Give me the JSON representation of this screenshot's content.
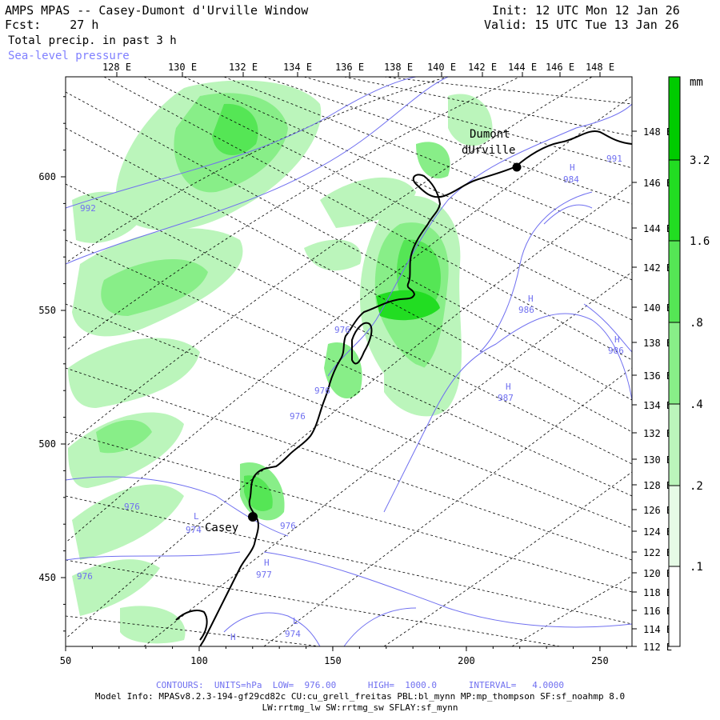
{
  "header": {
    "title": "AMPS MPAS -- Casey-Dumont d'Urville Window",
    "forecast_label": "Fcst:",
    "forecast_hours": "27 h",
    "field": "Total precip. in past 3 h",
    "overlay": "Sea-level pressure",
    "init": "Init: 12 UTC Mon 12 Jan 26",
    "valid": "Valid: 15 UTC Tue 13 Jan 26"
  },
  "axes": {
    "x_ticks": [
      "50",
      "100",
      "150",
      "200",
      "250"
    ],
    "y_ticks": [
      "600",
      "550",
      "500",
      "450"
    ]
  },
  "longitude_labels_top": [
    "128 E",
    "130 E",
    "132 E",
    "134 E",
    "136 E",
    "138 E",
    "140 E",
    "142 E",
    "144 E",
    "146 E",
    "148 E"
  ],
  "longitude_labels_right": [
    "148 E",
    "146 E",
    "144 E",
    "142 E",
    "140 E",
    "138 E",
    "136 E",
    "134 E",
    "132 E",
    "130 E",
    "128 E",
    "126 E",
    "124 E",
    "122 E",
    "120 E",
    "118 E",
    "116 E",
    "114 E",
    "112 E"
  ],
  "colorbar": {
    "unit": "mm",
    "labels": [
      "3.2",
      "1.6",
      ".8",
      ".4",
      ".2",
      ".1"
    ],
    "colors": [
      "#00cc00",
      "#22dd22",
      "#55e655",
      "#88ee88",
      "#bbf5bb",
      "#e6fbe6"
    ]
  },
  "stations": [
    {
      "name_line1": "Dumont",
      "name_line2": "dUrville"
    },
    {
      "name_line1": "Casey"
    }
  ],
  "isobar_labels": [
    "992",
    "991",
    "984",
    "986",
    "986",
    "987",
    "976",
    "976",
    "976",
    "974",
    "976",
    "977",
    "974",
    "976",
    "976"
  ],
  "pressure_centers": [
    "H",
    "H",
    "H",
    "H",
    "L",
    "H",
    "L",
    "H"
  ],
  "footer": {
    "contours": "CONTOURS:  UNITS=hPa  LOW=  976.00      HIGH=  1000.0      INTERVAL=   4.0000",
    "model_info": "Model Info: MPASv8.2.3-194-gf29cd82c CU:cu_grell_freitas PBL:bl_mynn MP:mp_thompson SF:sf_noahmp 8.0",
    "model_info2": "LW:rrtmg_lw SW:rrtmg_sw SFLAY:sf_mynn"
  },
  "colors": {
    "isobar": "#7070f0",
    "coast": "#000000",
    "grid": "#000000"
  }
}
